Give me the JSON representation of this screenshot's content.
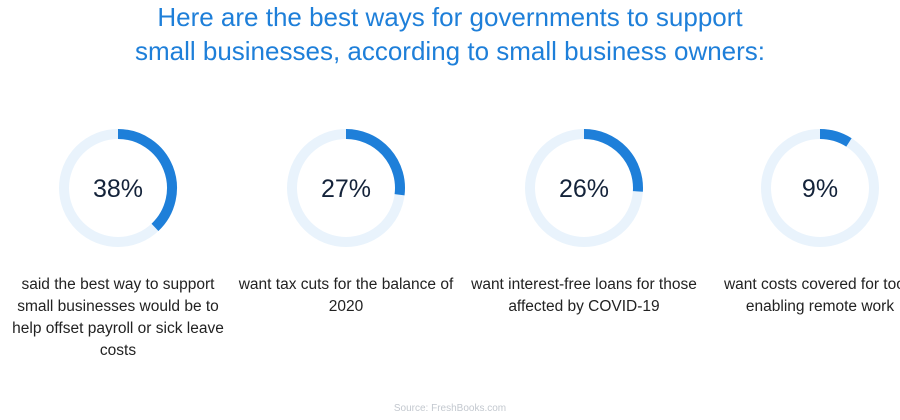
{
  "title_lines": [
    "Here are the best ways for governments to support",
    "small businesses, according to small business owners:"
  ],
  "colors": {
    "title": "#1e7fd9",
    "arc": "#1e7fd9",
    "track": "#e9f3fc",
    "value_text": "#14233a",
    "source_text": "#c3c8cf"
  },
  "chart_data": {
    "type": "pie",
    "title": "Here are the best ways for governments to support small businesses, according to small business owners:",
    "style": "progress-rings",
    "items": [
      {
        "value": 38,
        "label": "38%",
        "description": "said the best way to support small businesses would be to help offset payroll or sick leave costs"
      },
      {
        "value": 27,
        "label": "27%",
        "description": "want tax cuts for the balance of 2020"
      },
      {
        "value": 26,
        "label": "26%",
        "description": "want interest-free loans for those affected by COVID-19"
      },
      {
        "value": 9,
        "label": "9%",
        "description": "want costs covered for tools enabling remote work"
      }
    ]
  },
  "source": "Source: FreshBooks.com"
}
